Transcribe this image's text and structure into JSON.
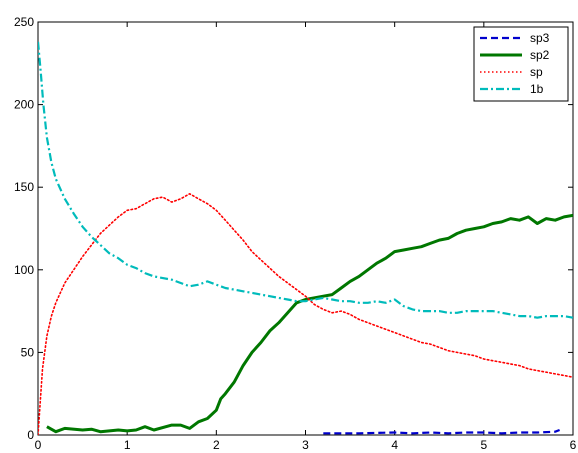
{
  "chart_data": {
    "type": "line",
    "xlim": [
      0,
      6
    ],
    "ylim": [
      0,
      250
    ],
    "xticks": [
      0,
      1,
      2,
      3,
      4,
      5,
      6
    ],
    "yticks": [
      0,
      50,
      100,
      150,
      200,
      250
    ],
    "xtick_labels": [
      "0",
      "1",
      "2",
      "3",
      "4",
      "5",
      "6"
    ],
    "ytick_labels": [
      "0",
      "50",
      "100",
      "150",
      "200",
      "250"
    ],
    "grid": false,
    "legend_position": "top-right",
    "series": [
      {
        "name": "sp3",
        "color": "#0000cc",
        "style": "dashed",
        "x": [
          3.2,
          3.6,
          4.0,
          4.2,
          4.4,
          4.6,
          4.8,
          5.0,
          5.2,
          5.4,
          5.6,
          5.8,
          5.85
        ],
        "y": [
          1,
          1,
          1.5,
          1,
          1.5,
          1,
          1.5,
          1.5,
          1,
          1.5,
          1.5,
          2,
          3
        ]
      },
      {
        "name": "sp2",
        "color": "#007700",
        "style": "solid",
        "x": [
          0.1,
          0.2,
          0.3,
          0.5,
          0.6,
          0.7,
          0.9,
          1.0,
          1.1,
          1.2,
          1.3,
          1.5,
          1.6,
          1.7,
          1.8,
          1.9,
          2.0,
          2.05,
          2.1,
          2.2,
          2.3,
          2.4,
          2.5,
          2.6,
          2.7,
          2.8,
          2.9,
          3.0,
          3.1,
          3.2,
          3.3,
          3.4,
          3.5,
          3.6,
          3.7,
          3.8,
          3.9,
          4.0,
          4.1,
          4.2,
          4.3,
          4.4,
          4.5,
          4.6,
          4.7,
          4.8,
          4.9,
          5.0,
          5.1,
          5.2,
          5.3,
          5.4,
          5.5,
          5.6,
          5.7,
          5.8,
          5.9,
          6.0
        ],
        "y": [
          5,
          2,
          4,
          3,
          3.5,
          2,
          3,
          2.5,
          3,
          5,
          3,
          6,
          6,
          4,
          8,
          10,
          15,
          22,
          25,
          32,
          42,
          50,
          56,
          63,
          68,
          74,
          80,
          82,
          83,
          84,
          85,
          89,
          93,
          96,
          100,
          104,
          107,
          111,
          112,
          113,
          114,
          116,
          118,
          119,
          122,
          124,
          125,
          126,
          128,
          129,
          131,
          130,
          132,
          128,
          131,
          130,
          132,
          133
        ]
      },
      {
        "name": "sp",
        "color": "#ff0000",
        "style": "dotted",
        "x": [
          0,
          0.05,
          0.1,
          0.15,
          0.2,
          0.3,
          0.4,
          0.5,
          0.6,
          0.7,
          0.8,
          0.9,
          1.0,
          1.1,
          1.2,
          1.3,
          1.4,
          1.5,
          1.6,
          1.7,
          1.8,
          1.9,
          2.0,
          2.1,
          2.2,
          2.3,
          2.4,
          2.5,
          2.6,
          2.7,
          2.8,
          2.9,
          3.0,
          3.1,
          3.2,
          3.3,
          3.4,
          3.5,
          3.6,
          3.7,
          3.8,
          3.9,
          4.0,
          4.1,
          4.2,
          4.3,
          4.4,
          4.5,
          4.6,
          4.7,
          4.8,
          4.9,
          5.0,
          5.1,
          5.2,
          5.3,
          5.4,
          5.5,
          5.6,
          5.7,
          5.8,
          5.9,
          6.0
        ],
        "y": [
          0,
          40,
          60,
          72,
          80,
          92,
          100,
          108,
          115,
          122,
          127,
          132,
          136,
          137,
          140,
          143,
          144,
          141,
          143,
          146,
          143,
          140,
          136,
          130,
          124,
          118,
          111,
          106,
          101,
          96,
          92,
          88,
          84,
          79,
          76,
          74,
          75,
          73,
          70,
          68,
          66,
          64,
          62,
          60,
          58,
          56,
          55,
          53,
          51,
          50,
          49,
          48,
          46,
          45,
          44,
          43,
          42,
          40,
          39,
          38,
          37,
          36,
          35
        ]
      },
      {
        "name": "1b",
        "color": "#00bbbb",
        "style": "dashdot",
        "x": [
          0,
          0.03,
          0.06,
          0.1,
          0.15,
          0.2,
          0.3,
          0.4,
          0.5,
          0.6,
          0.7,
          0.8,
          0.9,
          1.0,
          1.1,
          1.2,
          1.3,
          1.4,
          1.5,
          1.6,
          1.7,
          1.8,
          1.9,
          2.0,
          2.1,
          2.2,
          2.3,
          2.4,
          2.5,
          2.6,
          2.7,
          2.8,
          2.9,
          3.0,
          3.1,
          3.2,
          3.3,
          3.4,
          3.5,
          3.6,
          3.7,
          3.8,
          3.9,
          4.0,
          4.1,
          4.2,
          4.3,
          4.4,
          4.5,
          4.6,
          4.7,
          4.8,
          4.9,
          5.0,
          5.1,
          5.2,
          5.3,
          5.4,
          5.5,
          5.6,
          5.7,
          5.8,
          5.9,
          6.0
        ],
        "y": [
          238,
          220,
          200,
          180,
          165,
          155,
          143,
          134,
          126,
          120,
          115,
          110,
          107,
          103,
          101,
          98,
          96,
          95,
          94,
          92,
          90,
          91,
          93,
          91,
          89,
          88,
          87,
          86,
          85,
          84,
          83,
          82,
          81,
          81,
          82,
          83,
          82,
          81,
          81,
          80,
          80,
          81,
          80,
          82,
          78,
          76,
          75,
          75,
          75,
          74,
          74,
          75,
          75,
          75,
          75,
          74,
          73,
          72,
          72,
          71,
          72,
          72,
          72,
          71
        ]
      }
    ]
  }
}
